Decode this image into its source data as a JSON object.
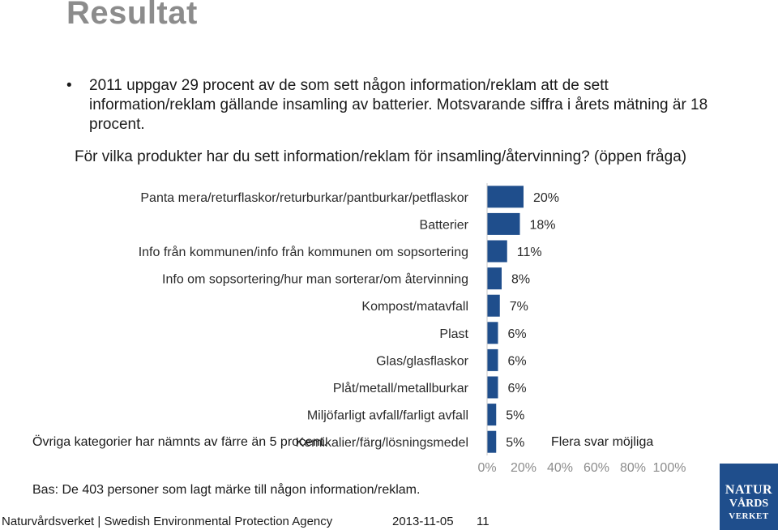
{
  "page": {
    "title": "Resultat",
    "bullet_symbol": "•",
    "bullet_text": "2011 uppgav 29 procent av de som sett någon information/reklam att de sett information/reklam gällande insamling av batterier. Motsvarande siffra i årets mätning är 18 procent.",
    "question": "För vilka produkter har du sett information/reklam för insamling/återvinning? (öppen fråga)",
    "other_note": "Övriga kategorier har nämnts av färre än 5 procent.",
    "multi_answer_note": "Flera svar möjliga",
    "base_note": "Bas: De 403 personer som lagt märke till någon information/reklam."
  },
  "footer": {
    "organization": "Naturvårdsverket | Swedish Environmental Protection Agency",
    "date": "2013-11-05",
    "page_number": "11"
  },
  "logo": {
    "line1": "NATUR",
    "line2": "VÅRDS",
    "line3": "VERKET",
    "color": "#1f4e8c"
  },
  "chart_data": {
    "type": "bar",
    "orientation": "horizontal",
    "categories": [
      "Panta mera/returflaskor/returburkar/pantburkar/petflaskor",
      "Batterier",
      "Info från kommunen/info från kommunen om sopsortering",
      "Info om sopsortering/hur man sorterar/om återvinning",
      "Kompost/matavfall",
      "Plast",
      "Glas/glasflaskor",
      "Plåt/metall/metallburkar",
      "Miljöfarligt avfall/farligt avfall",
      "Kemikalier/färg/lösningsmedel"
    ],
    "values": [
      20,
      18,
      11,
      8,
      7,
      6,
      6,
      6,
      5,
      5
    ],
    "data_labels": [
      "20%",
      "18%",
      "11%",
      "8%",
      "7%",
      "6%",
      "6%",
      "6%",
      "5%",
      "5%"
    ],
    "xlim": [
      0,
      100
    ],
    "x_ticks": [
      "0%",
      "20%",
      "40%",
      "60%",
      "80%",
      "100%"
    ],
    "bar_color": "#1f4e8c",
    "axis_color": "#c8c8c8",
    "tick_color": "#8c8c8c",
    "grid": false
  }
}
